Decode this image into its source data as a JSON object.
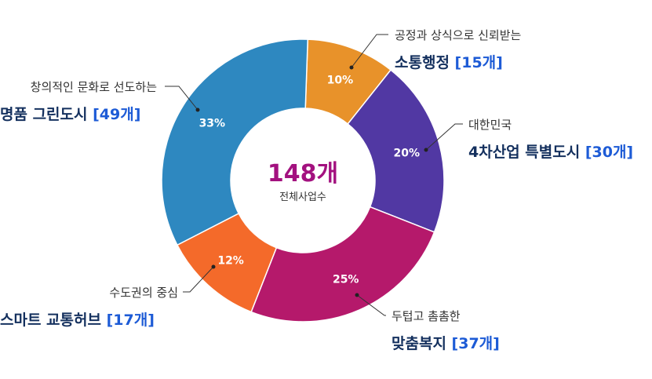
{
  "chart_data": {
    "type": "pie",
    "donut": true,
    "total": {
      "value": "148개",
      "label": "전체사업수"
    },
    "slices": [
      {
        "subtitle": "공정과 상식으로 신뢰받는",
        "name": "소통행정",
        "count_label": "[15개]",
        "value": 15,
        "percent": "10%",
        "color": "#e8922a"
      },
      {
        "subtitle": "대한민국",
        "name": "4차산업 특별도시",
        "count_label": "[30개]",
        "value": 30,
        "percent": "20%",
        "color": "#5138a3"
      },
      {
        "subtitle": "두텁고 촘촘한",
        "name": "맞춤복지",
        "count_label": "[37개]",
        "value": 37,
        "percent": "25%",
        "color": "#b5196b"
      },
      {
        "subtitle": "수도권의 중심",
        "name": "스마트 교통허브",
        "count_label": "[17개]",
        "value": 17,
        "percent": "12%",
        "color": "#f46a2a"
      },
      {
        "subtitle": "창의적인 문화로 선도하는",
        "name": "명품 그린도시",
        "count_label": "[49개]",
        "value": 49,
        "percent": "33%",
        "color": "#2e88c0"
      }
    ]
  }
}
